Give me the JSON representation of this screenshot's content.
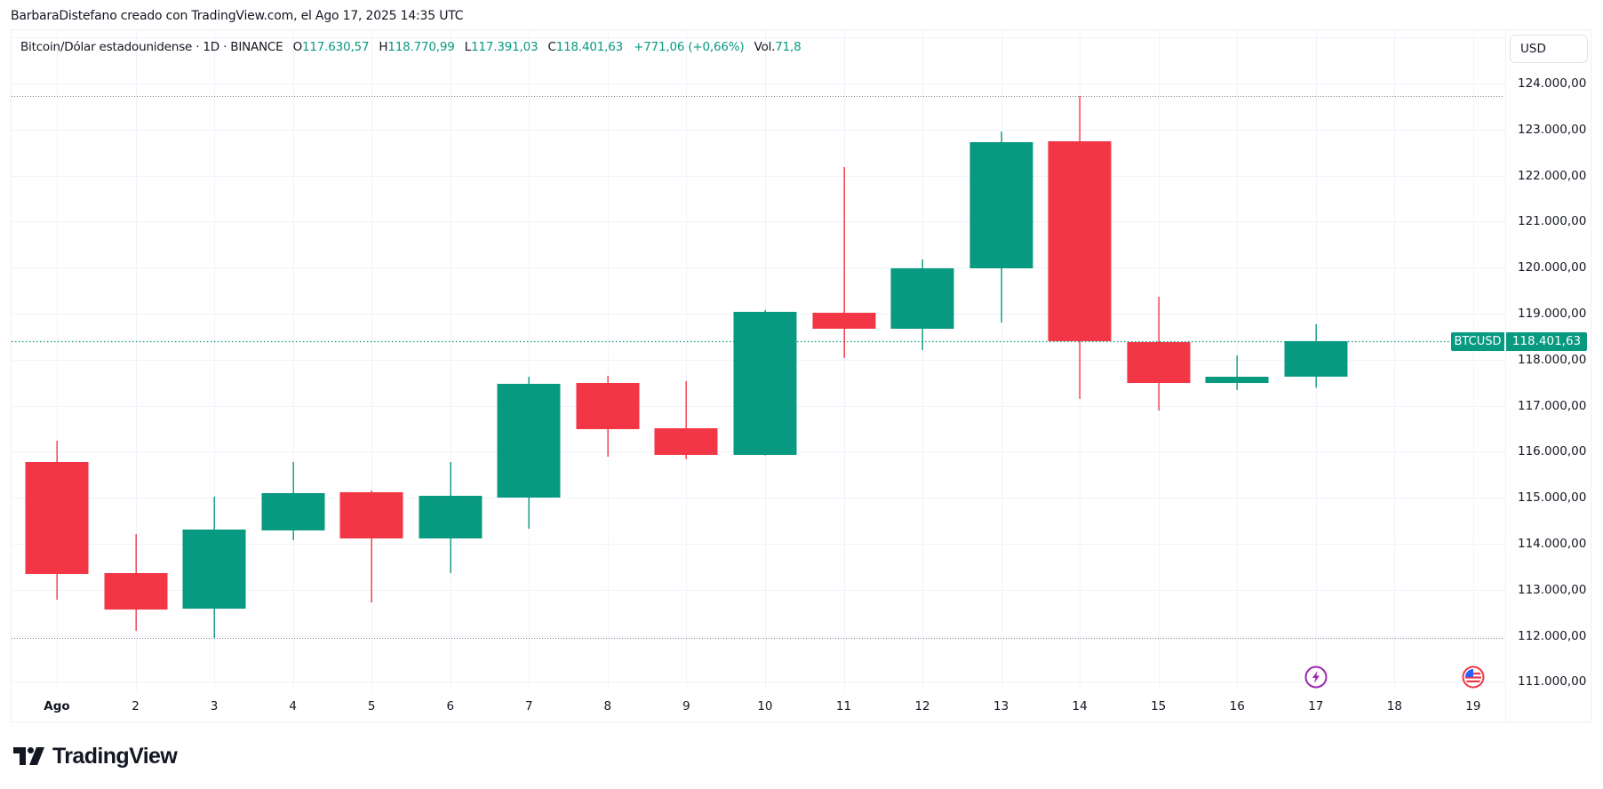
{
  "caption": "BarbaraDistefano creado con TradingView.com, el Ago 17, 2025 14:35 UTC",
  "legend": {
    "symbol_desc": "Bitcoin/Dólar estadounidense · 1D · BINANCE",
    "open_label": "O",
    "open_value": "117.630,57",
    "high_label": "H",
    "high_value": "118.770,99",
    "low_label": "L",
    "low_value": "117.391,03",
    "close_label": "C",
    "close_value": "118.401,63",
    "change": "+771,06 (+0,66%)",
    "vol_label": "Vol.",
    "vol_value": "71,8"
  },
  "currency": "USD",
  "last_price": {
    "symbol": "BTCUSD",
    "value": "118.401,63"
  },
  "logo_text": "TradingView",
  "colors": {
    "up": "#089981",
    "down": "#F23645",
    "grid": "#f0f3fa",
    "text": "#131722"
  },
  "events": [
    {
      "name": "lightning-event-icon",
      "x_index": 16,
      "color": "#9c27b0"
    },
    {
      "name": "us-flag-event-icon",
      "x_index": 18,
      "color": "#f23645"
    }
  ],
  "chart_data": {
    "type": "candlestick",
    "title": "Bitcoin/Dólar estadounidense · 1D · BINANCE",
    "xlabel": "",
    "ylabel": "USD",
    "x_ticks": [
      "Ago",
      "2",
      "3",
      "4",
      "5",
      "6",
      "7",
      "8",
      "9",
      "10",
      "11",
      "12",
      "13",
      "14",
      "15",
      "16",
      "17",
      "18",
      "19"
    ],
    "y_ticks": [
      {
        "value": 124000,
        "label": "124.000,00"
      },
      {
        "value": 123000,
        "label": "123.000,00"
      },
      {
        "value": 122000,
        "label": "122.000,00"
      },
      {
        "value": 121000,
        "label": "121.000,00"
      },
      {
        "value": 120000,
        "label": "120.000,00"
      },
      {
        "value": 119000,
        "label": "119.000,00"
      },
      {
        "value": 118000,
        "label": "118.000,00"
      },
      {
        "value": 117000,
        "label": "117.000,00"
      },
      {
        "value": 116000,
        "label": "116.000,00"
      },
      {
        "value": 115000,
        "label": "115.000,00"
      },
      {
        "value": 114000,
        "label": "114.000,00"
      },
      {
        "value": 113000,
        "label": "113.000,00"
      },
      {
        "value": 112000,
        "label": "112.000,00"
      },
      {
        "value": 111000,
        "label": "111.000,00"
      }
    ],
    "ylim": [
      110800,
      125200
    ],
    "grid": true,
    "high_line": 123730,
    "low_line": 111954,
    "last_close": 118401.63,
    "candles": [
      {
        "date": "Ago 1",
        "open": 115776,
        "high": 116239,
        "low": 112784,
        "close": 113344
      },
      {
        "date": "Ago 2",
        "open": 113363,
        "high": 114212,
        "low": 112108,
        "close": 112571
      },
      {
        "date": "Ago 3",
        "open": 112590,
        "high": 115023,
        "low": 111954,
        "close": 114309
      },
      {
        "date": "Ago 4",
        "open": 114290,
        "high": 115776,
        "low": 114077,
        "close": 115100
      },
      {
        "date": "Ago 5",
        "open": 115120,
        "high": 115158,
        "low": 112726,
        "close": 114116
      },
      {
        "date": "Ago 6",
        "open": 114116,
        "high": 115776,
        "low": 113363,
        "close": 115042
      },
      {
        "date": "Ago 7",
        "open": 115004,
        "high": 117629,
        "low": 114328,
        "close": 117475
      },
      {
        "date": "Ago 8",
        "open": 117494,
        "high": 117649,
        "low": 115892,
        "close": 116490
      },
      {
        "date": "Ago 9",
        "open": 116510,
        "high": 117533,
        "low": 115834,
        "close": 115931
      },
      {
        "date": "Ago 10",
        "open": 115931,
        "high": 119077,
        "low": 115920,
        "close": 119039
      },
      {
        "date": "Ago 11",
        "open": 119019,
        "high": 122185,
        "low": 118035,
        "close": 118672
      },
      {
        "date": "Ago 12",
        "open": 118672,
        "high": 120178,
        "low": 118208,
        "close": 119985
      },
      {
        "date": "Ago 13",
        "open": 119985,
        "high": 122958,
        "low": 118807,
        "close": 122726
      },
      {
        "date": "Ago 14",
        "open": 122745,
        "high": 123730,
        "low": 117147,
        "close": 118402
      },
      {
        "date": "Ago 15",
        "open": 118382,
        "high": 119367,
        "low": 116896,
        "close": 117494
      },
      {
        "date": "Ago 16",
        "open": 117494,
        "high": 118093,
        "low": 117340,
        "close": 117629
      },
      {
        "date": "Ago 17",
        "open": 117630.57,
        "high": 118770.99,
        "low": 117391.03,
        "close": 118401.63
      }
    ]
  }
}
